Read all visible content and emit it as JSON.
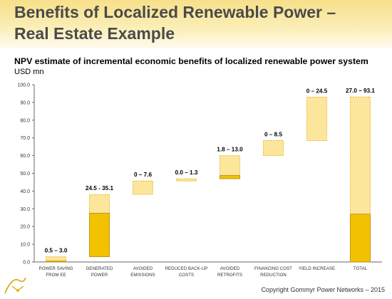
{
  "slide": {
    "title_line1": "Benefits of Localized Renewable Power –",
    "title_line2": "Real Estate Example",
    "copyright": "Copyright Gommyr Power Networks – 2015"
  },
  "colors": {
    "dark_bar": "#f2c200",
    "dark_bar_border": "#b8860b",
    "light_bar": "#fbe69b",
    "light_bar_border": "#e6a800",
    "header_band": "#f7e08a"
  },
  "chart_data": {
    "type": "bar",
    "subtype": "waterfall-range",
    "title": "NPV estimate of incremental economic benefits of localized renewable power system",
    "ylabel": "USD mn",
    "ylim": [
      0,
      100
    ],
    "yticks": [
      "0.0",
      "10.0",
      "20.0",
      "30.0",
      "40.0",
      "50.0",
      "60.0",
      "70.0",
      "80.0",
      "90.0",
      "100.0"
    ],
    "grid": false,
    "categories": [
      [
        "POWER SAVING",
        "FROM EE"
      ],
      [
        "GENERATED",
        "POWER"
      ],
      [
        "AVOIDED",
        "EMISSIONS"
      ],
      [
        "REDUCED BACK-UP",
        "COSTS"
      ],
      [
        "AVOIDED",
        "RETROFITS"
      ],
      [
        "FINANCING COST",
        "REDUCTION"
      ],
      [
        "YIELD INCREASE"
      ],
      [
        "TOTAL"
      ]
    ],
    "range_labels": [
      "0.5 – 3.0",
      "24.5 - 35.1",
      "0 – 7.6",
      "0.0 – 1.3",
      "1.8 – 13.0",
      "0 – 8.5",
      "0 – 24.5",
      "27.0 – 93.1"
    ],
    "bars": [
      {
        "base": 0,
        "low": 0.5,
        "high": 3.0
      },
      {
        "base": 3.0,
        "low": 24.5,
        "high": 35.1
      },
      {
        "base": 38.1,
        "low": 0,
        "high": 7.6
      },
      {
        "base": 45.7,
        "low": 0.0,
        "high": 1.3
      },
      {
        "base": 47.0,
        "low": 1.8,
        "high": 13.0
      },
      {
        "base": 60.0,
        "low": 0,
        "high": 8.5
      },
      {
        "base": 68.5,
        "low": 0,
        "high": 24.5
      },
      {
        "base": 0,
        "low": 27.0,
        "high": 93.1
      }
    ]
  }
}
